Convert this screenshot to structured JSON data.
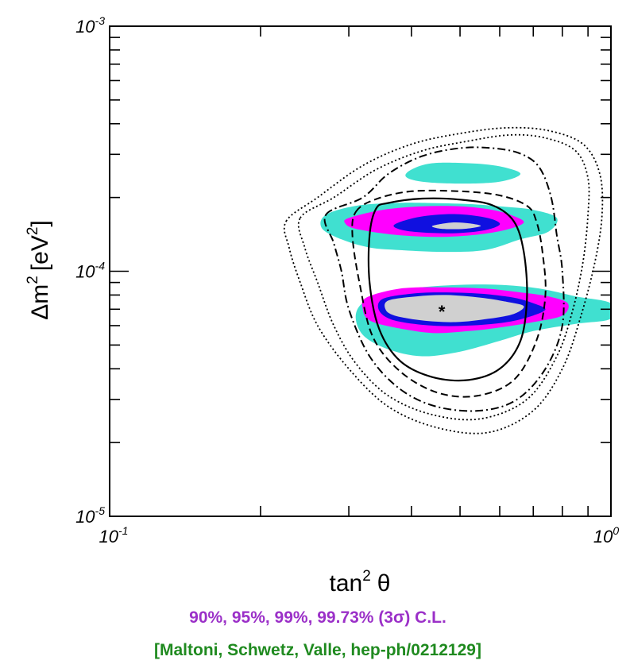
{
  "chart_data": {
    "type": "contour",
    "x_scale": "log",
    "y_scale": "log",
    "xlim": [
      0.1,
      1.0
    ],
    "ylim": [
      1e-05,
      0.001
    ],
    "xlabel_base": "tan",
    "xlabel_sup": "2",
    "xlabel_symbol": "θ",
    "ylabel_main": "Δm",
    "ylabel_sup": "2",
    "ylabel_unit_pre": "[eV",
    "ylabel_unit_sup": "2",
    "ylabel_unit_post": "]",
    "x_ticks": [
      {
        "value": 0.1,
        "base": "10",
        "exp": "-1"
      },
      {
        "value": 1.0,
        "base": "10",
        "exp": "0"
      }
    ],
    "y_ticks": [
      {
        "value": 1e-05,
        "base": "10",
        "exp": "-5"
      },
      {
        "value": 0.0001,
        "base": "10",
        "exp": "-4"
      },
      {
        "value": 0.001,
        "base": "10",
        "exp": "-3"
      }
    ],
    "best_fit": {
      "x": 0.46,
      "y": 6.9e-05,
      "marker": "*"
    },
    "confidence_levels": [
      "90%",
      "95%",
      "99%",
      "99.73% (3σ)"
    ],
    "colors": {
      "cl_90": "#d0d0d0",
      "cl_95": "#1010e0",
      "cl_99": "#ff00ff",
      "cl_3sigma": "#40e0d0",
      "caption_cl": "#9b30c8",
      "caption_ref": "#1f8a1f"
    },
    "filled_regions": [
      {
        "level": "3σ",
        "color": "cl_3sigma",
        "polygon": [
          [
            0.33,
            7.7e-05
          ],
          [
            0.4,
            8.5e-05
          ],
          [
            0.5,
            8.8e-05
          ],
          [
            0.6,
            8.8e-05
          ],
          [
            0.72,
            8.5e-05
          ],
          [
            0.85,
            7.9e-05
          ],
          [
            1.0,
            7.4e-05
          ],
          [
            1.0,
            6.4e-05
          ],
          [
            0.85,
            6.1e-05
          ],
          [
            0.7,
            5.7e-05
          ],
          [
            0.6,
            5.2e-05
          ],
          [
            0.5,
            4.7e-05
          ],
          [
            0.42,
            4.5e-05
          ],
          [
            0.36,
            4.8e-05
          ],
          [
            0.32,
            5.5e-05
          ],
          [
            0.31,
            6.7e-05
          ]
        ]
      },
      {
        "level": "3σ",
        "color": "cl_3sigma",
        "polygon": [
          [
            0.27,
            0.00017
          ],
          [
            0.31,
            0.000185
          ],
          [
            0.37,
            0.00019
          ],
          [
            0.43,
            0.00019
          ],
          [
            0.52,
            0.000188
          ],
          [
            0.6,
            0.000184
          ],
          [
            0.7,
            0.000178
          ],
          [
            0.78,
            0.000165
          ],
          [
            0.75,
            0.000145
          ],
          [
            0.66,
            0.000135
          ],
          [
            0.56,
            0.000122
          ],
          [
            0.46,
            0.00012
          ],
          [
            0.38,
            0.000122
          ],
          [
            0.33,
            0.000125
          ],
          [
            0.29,
            0.000135
          ],
          [
            0.265,
            0.00015
          ]
        ]
      },
      {
        "level": "3σ",
        "color": "cl_3sigma",
        "polygon": [
          [
            0.4,
            0.00026
          ],
          [
            0.44,
            0.000276
          ],
          [
            0.52,
            0.000276
          ],
          [
            0.6,
            0.000268
          ],
          [
            0.66,
            0.00025
          ],
          [
            0.6,
            0.000232
          ],
          [
            0.5,
            0.000228
          ],
          [
            0.42,
            0.000232
          ],
          [
            0.39,
            0.000243
          ]
        ]
      },
      {
        "level": "99%",
        "color": "cl_99",
        "polygon": [
          [
            0.325,
            7.8e-05
          ],
          [
            0.38,
            8.5e-05
          ],
          [
            0.46,
            8.6e-05
          ],
          [
            0.56,
            8.5e-05
          ],
          [
            0.66,
            8.2e-05
          ],
          [
            0.75,
            7.9e-05
          ],
          [
            0.82,
            7.4e-05
          ],
          [
            0.8,
            6.6e-05
          ],
          [
            0.7,
            6.2e-05
          ],
          [
            0.6,
            5.9e-05
          ],
          [
            0.52,
            5.7e-05
          ],
          [
            0.44,
            5.6e-05
          ],
          [
            0.37,
            5.9e-05
          ],
          [
            0.33,
            6.3e-05
          ],
          [
            0.32,
            7e-05
          ]
        ]
      },
      {
        "level": "99%",
        "color": "cl_99",
        "polygon": [
          [
            0.3,
            0.000165
          ],
          [
            0.35,
            0.000178
          ],
          [
            0.42,
            0.000184
          ],
          [
            0.5,
            0.000184
          ],
          [
            0.58,
            0.000178
          ],
          [
            0.64,
            0.000168
          ],
          [
            0.67,
            0.000158
          ],
          [
            0.62,
            0.000148
          ],
          [
            0.54,
            0.000141
          ],
          [
            0.45,
            0.000138
          ],
          [
            0.37,
            0.000141
          ],
          [
            0.31,
            0.000149
          ],
          [
            0.295,
            0.000157
          ]
        ]
      },
      {
        "level": "95%",
        "color": "cl_95",
        "polygon": [
          [
            0.35,
            7.7e-05
          ],
          [
            0.4,
            8.1e-05
          ],
          [
            0.46,
            8.2e-05
          ],
          [
            0.55,
            8.1e-05
          ],
          [
            0.64,
            7.8e-05
          ],
          [
            0.7,
            7.4e-05
          ],
          [
            0.74,
            7e-05
          ],
          [
            0.7,
            6.6e-05
          ],
          [
            0.62,
            6.2e-05
          ],
          [
            0.52,
            6e-05
          ],
          [
            0.44,
            6e-05
          ],
          [
            0.37,
            6.3e-05
          ],
          [
            0.345,
            6.9e-05
          ]
        ]
      },
      {
        "level": "95%",
        "color": "cl_95",
        "polygon": [
          [
            0.37,
            0.000155
          ],
          [
            0.41,
            0.000166
          ],
          [
            0.47,
            0.000171
          ],
          [
            0.53,
            0.000169
          ],
          [
            0.58,
            0.000163
          ],
          [
            0.6,
            0.000155
          ],
          [
            0.56,
            0.000147
          ],
          [
            0.49,
            0.000143
          ],
          [
            0.42,
            0.000144
          ],
          [
            0.38,
            0.000148
          ]
        ]
      },
      {
        "level": "90%",
        "color": "cl_90",
        "polygon": [
          [
            0.36,
            7.6e-05
          ],
          [
            0.41,
            7.9e-05
          ],
          [
            0.47,
            8e-05
          ],
          [
            0.55,
            7.8e-05
          ],
          [
            0.62,
            7.5e-05
          ],
          [
            0.67,
            7.2e-05
          ],
          [
            0.64,
            6.7e-05
          ],
          [
            0.57,
            6.4e-05
          ],
          [
            0.49,
            6.2e-05
          ],
          [
            0.42,
            6.3e-05
          ],
          [
            0.37,
            6.6e-05
          ],
          [
            0.355,
            7e-05
          ]
        ]
      },
      {
        "level": "90%",
        "color": "cl_90",
        "polygon": [
          [
            0.44,
            0.000153
          ],
          [
            0.48,
            0.000158
          ],
          [
            0.52,
            0.000157
          ],
          [
            0.55,
            0.000153
          ],
          [
            0.51,
            0.000149
          ],
          [
            0.46,
            0.000149
          ]
        ]
      }
    ],
    "line_contours": [
      {
        "style": "solid",
        "polygon": [
          [
            0.34,
            0.00018
          ],
          [
            0.36,
            0.00019
          ],
          [
            0.42,
            0.000198
          ],
          [
            0.5,
            0.000196
          ],
          [
            0.58,
            0.000186
          ],
          [
            0.64,
            0.00016
          ],
          [
            0.67,
            0.00012
          ],
          [
            0.68,
            7.8e-05
          ],
          [
            0.66,
            5.2e-05
          ],
          [
            0.6,
            4e-05
          ],
          [
            0.52,
            3.6e-05
          ],
          [
            0.44,
            3.7e-05
          ],
          [
            0.38,
            4.3e-05
          ],
          [
            0.345,
            5.8e-05
          ],
          [
            0.33,
            9e-05
          ],
          [
            0.33,
            0.00014
          ]
        ]
      },
      {
        "style": "dashed",
        "polygon": [
          [
            0.31,
            0.000175
          ],
          [
            0.34,
            0.000197
          ],
          [
            0.4,
            0.000212
          ],
          [
            0.5,
            0.000212
          ],
          [
            0.6,
            0.000204
          ],
          [
            0.68,
            0.000185
          ],
          [
            0.71,
            0.00016
          ],
          [
            0.73,
            0.00012
          ],
          [
            0.74,
            8e-05
          ],
          [
            0.71,
            5.2e-05
          ],
          [
            0.64,
            3.6e-05
          ],
          [
            0.54,
            3.1e-05
          ],
          [
            0.45,
            3.2e-05
          ],
          [
            0.38,
            3.9e-05
          ],
          [
            0.335,
            5.4e-05
          ],
          [
            0.315,
            9e-05
          ],
          [
            0.305,
            0.00014
          ]
        ]
      },
      {
        "style": "dashdot",
        "polygon": [
          [
            0.27,
            0.00017
          ],
          [
            0.32,
            0.0002
          ],
          [
            0.36,
            0.00025
          ],
          [
            0.42,
            0.000295
          ],
          [
            0.5,
            0.000318
          ],
          [
            0.58,
            0.000318
          ],
          [
            0.66,
            0.000302
          ],
          [
            0.72,
            0.000265
          ],
          [
            0.76,
            0.0002
          ],
          [
            0.78,
            0.00014
          ],
          [
            0.8,
            0.0001
          ],
          [
            0.8,
            6e-05
          ],
          [
            0.74,
            4e-05
          ],
          [
            0.65,
            3e-05
          ],
          [
            0.55,
            2.7e-05
          ],
          [
            0.45,
            2.8e-05
          ],
          [
            0.38,
            3.3e-05
          ],
          [
            0.33,
            4.5e-05
          ],
          [
            0.3,
            7e-05
          ],
          [
            0.29,
            0.0001
          ],
          [
            0.28,
            0.00013
          ]
        ]
      },
      {
        "style": "dotted",
        "polygon": [
          [
            0.24,
            0.000165
          ],
          [
            0.28,
            0.0002
          ],
          [
            0.34,
            0.00026
          ],
          [
            0.42,
            0.00031
          ],
          [
            0.52,
            0.00034
          ],
          [
            0.63,
            0.00036
          ],
          [
            0.74,
            0.00035
          ],
          [
            0.85,
            0.00031
          ],
          [
            0.9,
            0.00024
          ],
          [
            0.9,
            0.00017
          ],
          [
            0.88,
            0.00011
          ],
          [
            0.84,
            7e-05
          ],
          [
            0.78,
            4.5e-05
          ],
          [
            0.68,
            3e-05
          ],
          [
            0.55,
            2.5e-05
          ],
          [
            0.44,
            2.6e-05
          ],
          [
            0.36,
            3.1e-05
          ],
          [
            0.31,
            4.2e-05
          ],
          [
            0.28,
            6e-05
          ],
          [
            0.26,
            9e-05
          ],
          [
            0.245,
            0.000125
          ]
        ]
      },
      {
        "style": "dotted",
        "polygon": [
          [
            0.225,
            0.00016
          ],
          [
            0.26,
            0.0002
          ],
          [
            0.32,
            0.00027
          ],
          [
            0.4,
            0.00033
          ],
          [
            0.5,
            0.000365
          ],
          [
            0.62,
            0.000385
          ],
          [
            0.75,
            0.000375
          ],
          [
            0.88,
            0.00033
          ],
          [
            0.95,
            0.00025
          ],
          [
            0.96,
            0.00017
          ],
          [
            0.93,
            0.00011
          ],
          [
            0.87,
            6.5e-05
          ],
          [
            0.8,
            4e-05
          ],
          [
            0.7,
            2.7e-05
          ],
          [
            0.57,
            2.2e-05
          ],
          [
            0.45,
            2.3e-05
          ],
          [
            0.36,
            2.8e-05
          ],
          [
            0.3,
            4e-05
          ],
          [
            0.26,
            6e-05
          ],
          [
            0.24,
            9e-05
          ],
          [
            0.228,
            0.000125
          ]
        ]
      }
    ]
  },
  "caption": {
    "cl_line": "90%, 95%, 99%, 99.73% (3σ) C.L.",
    "ref_line": "[Maltoni, Schwetz, Valle, hep-ph/0212129]"
  }
}
